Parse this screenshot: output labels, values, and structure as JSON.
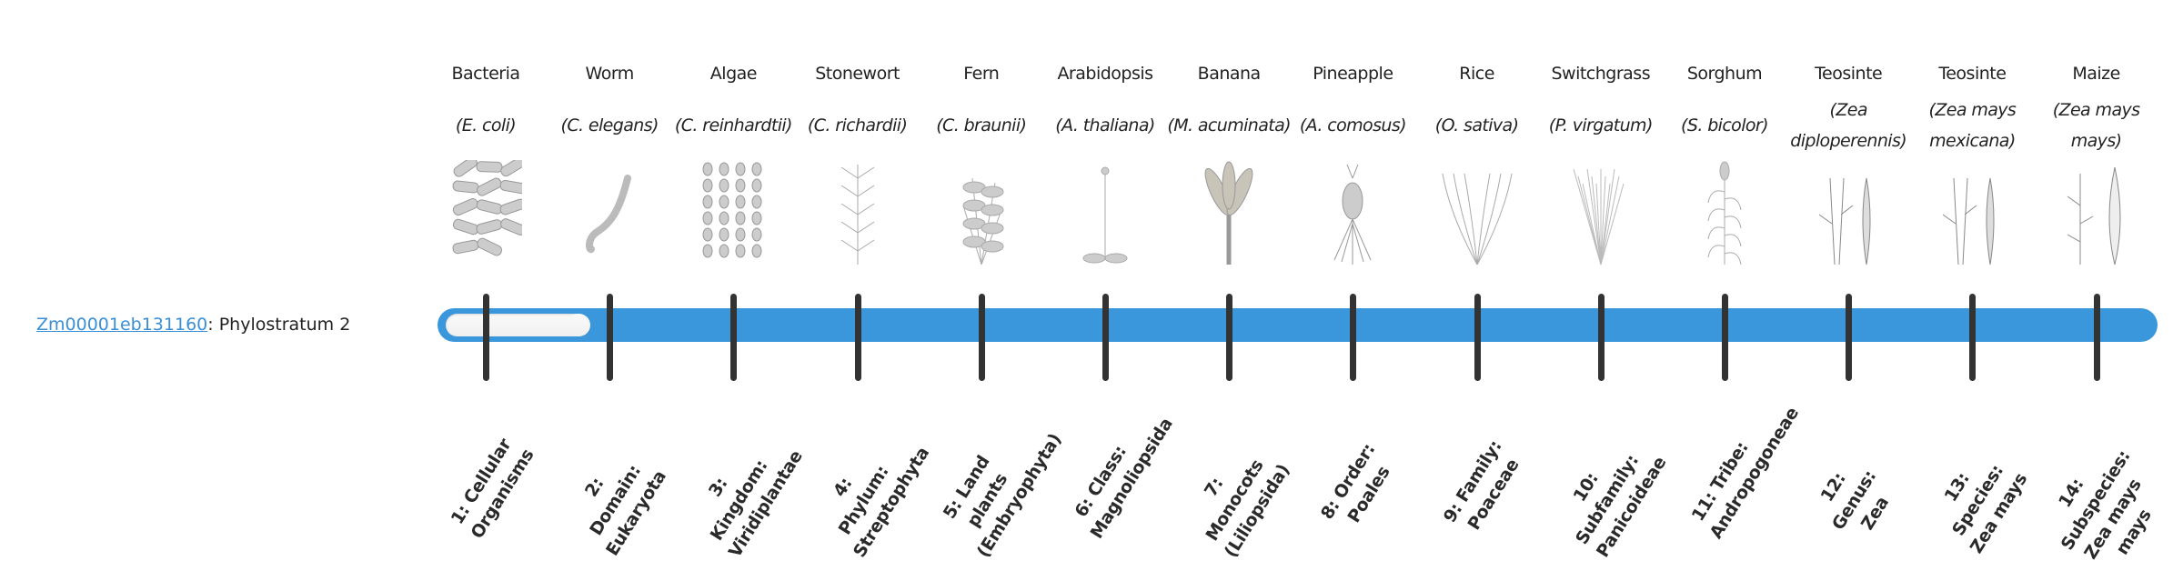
{
  "gene": {
    "id": "Zm00001eb131160",
    "separator": ": ",
    "label": "Phylostratum 2",
    "phylostratum": 2,
    "total_strata": 14
  },
  "colors": {
    "bar": "#3a97dc",
    "link": "#3a8fd6",
    "tick": "#333333"
  },
  "organisms": [
    {
      "name": "Bacteria",
      "species": "(E. coli)",
      "icon": "bacteria-icon"
    },
    {
      "name": "Worm",
      "species": "(C. elegans)",
      "icon": "worm-icon"
    },
    {
      "name": "Algae",
      "species": "(C. reinhardtii)",
      "icon": "algae-icon"
    },
    {
      "name": "Stonewort",
      "species": "(C. richardii)",
      "icon": "stonewort-icon"
    },
    {
      "name": "Fern",
      "species": "(C. braunii)",
      "icon": "fern-icon"
    },
    {
      "name": "Arabidopsis",
      "species": "(A. thaliana)",
      "icon": "arabidopsis-icon"
    },
    {
      "name": "Banana",
      "species": "(M. acuminata)",
      "icon": "banana-icon"
    },
    {
      "name": "Pineapple",
      "species": "(A. comosus)",
      "icon": "pineapple-icon"
    },
    {
      "name": "Rice",
      "species": "(O. sativa)",
      "icon": "rice-icon"
    },
    {
      "name": "Switchgrass",
      "species": "(P. virgatum)",
      "icon": "switchgrass-icon"
    },
    {
      "name": "Sorghum",
      "species": "(S. bicolor)",
      "icon": "sorghum-icon"
    },
    {
      "name": "Teosinte",
      "species": "(Zea diploperennis)",
      "icon": "teosinte-icon"
    },
    {
      "name": "Teosinte",
      "species": "(Zea mays mexicana)",
      "icon": "teosinte-icon"
    },
    {
      "name": "Maize",
      "species": "(Zea mays mays)",
      "icon": "maize-icon"
    }
  ],
  "strata": [
    "1: Cellular Organisms",
    "2: Domain: Eukaryota",
    "3: Kingdom: Viridiplantae",
    "4: Phylum: Streptophyta",
    "5: Land plants (Embryophyta)",
    "6: Class: Magnoliopsida",
    "7: Monocots (Liliopsida)",
    "8: Order: Poales",
    "9: Family: Poaceae",
    "10: Subfamily: Panicoideae",
    "11: Tribe: Andropogoneae",
    "12: Genus: Zea",
    "13: Species: Zea mays",
    "14: Subspecies: Zea mays mays"
  ]
}
